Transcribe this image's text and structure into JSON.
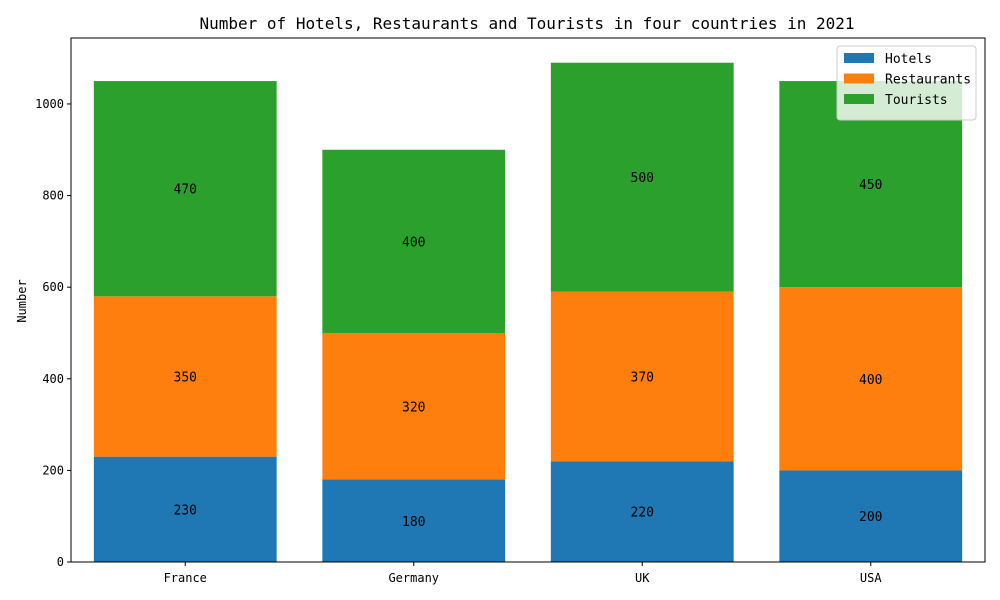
{
  "chart_data": {
    "type": "bar",
    "stacked": true,
    "title": "Number of Hotels, Restaurants and Tourists in four countries in 2021",
    "xlabel": "",
    "ylabel": "Number",
    "categories": [
      "France",
      "Germany",
      "UK",
      "USA"
    ],
    "series": [
      {
        "name": "Hotels",
        "color": "#1f77b4",
        "values": [
          230,
          180,
          220,
          200
        ]
      },
      {
        "name": "Restaurants",
        "color": "#ff7f0e",
        "values": [
          350,
          320,
          370,
          400
        ]
      },
      {
        "name": "Tourists",
        "color": "#2ca02c",
        "values": [
          470,
          400,
          500,
          450
        ]
      }
    ],
    "ylim": [
      0,
      1144
    ],
    "yticks": [
      0,
      200,
      400,
      600,
      800,
      1000
    ],
    "grid": false,
    "legend_position": "top-right"
  }
}
